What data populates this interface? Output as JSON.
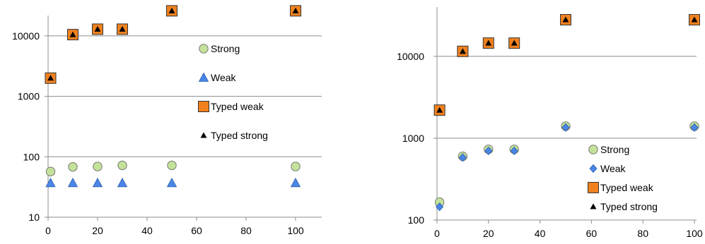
{
  "chart_data": [
    {
      "type": "scatter",
      "title": "",
      "xlabel": "",
      "ylabel": "",
      "xlim": [
        0,
        100
      ],
      "ylim": [
        10,
        30000
      ],
      "yscale": "log",
      "x_ticks": [
        "0",
        "20",
        "40",
        "60",
        "80",
        "100"
      ],
      "y_ticks": [
        "10",
        "100",
        "1000",
        "10000"
      ],
      "grid": "horizontal",
      "legend_position": "right",
      "series": [
        {
          "name": "Strong",
          "marker": "circle",
          "color": "#c4e29a",
          "x": [
            1,
            10,
            20,
            30,
            50,
            100
          ],
          "y": [
            57,
            68,
            69,
            72,
            72,
            69
          ]
        },
        {
          "name": "Weak",
          "marker": "triangle",
          "color": "#4a86e8",
          "x": [
            1,
            10,
            20,
            30,
            50,
            100
          ],
          "y": [
            37,
            37,
            37,
            37,
            37,
            37
          ]
        },
        {
          "name": "Typed weak",
          "marker": "square",
          "color": "#f0811e",
          "x": [
            1,
            10,
            20,
            30,
            50,
            100
          ],
          "y": [
            2000,
            10500,
            12900,
            12900,
            26000,
            26000
          ]
        },
        {
          "name": "Typed strong",
          "marker": "triangle-small",
          "color": "#000000",
          "x": [
            1,
            10,
            20,
            30,
            50,
            100
          ],
          "y": [
            2000,
            10500,
            12900,
            12900,
            26000,
            26000
          ]
        }
      ]
    },
    {
      "type": "scatter",
      "title": "",
      "xlabel": "",
      "ylabel": "",
      "xlim": [
        0,
        100
      ],
      "ylim": [
        100,
        40000
      ],
      "yscale": "log",
      "x_ticks": [
        "0",
        "20",
        "40",
        "60",
        "80",
        "100"
      ],
      "y_ticks": [
        "100",
        "1000",
        "10000"
      ],
      "grid": "horizontal",
      "legend_position": "bottom-right",
      "series": [
        {
          "name": "Strong",
          "marker": "circle",
          "color": "#c4e29a",
          "x": [
            1,
            10,
            20,
            30,
            50,
            100
          ],
          "y": [
            165,
            600,
            730,
            730,
            1400,
            1400
          ]
        },
        {
          "name": "Weak",
          "marker": "diamond",
          "color": "#4a86e8",
          "x": [
            1,
            10,
            20,
            30,
            50,
            100
          ],
          "y": [
            145,
            580,
            700,
            700,
            1350,
            1350
          ]
        },
        {
          "name": "Typed weak",
          "marker": "square",
          "color": "#f0811e",
          "x": [
            1,
            10,
            20,
            30,
            50,
            100
          ],
          "y": [
            2200,
            11500,
            14500,
            14500,
            28000,
            28000
          ]
        },
        {
          "name": "Typed strong",
          "marker": "triangle-small",
          "color": "#000000",
          "x": [
            1,
            10,
            20,
            30,
            50,
            100
          ],
          "y": [
            2200,
            11500,
            14500,
            14500,
            28000,
            28000
          ]
        }
      ]
    }
  ]
}
